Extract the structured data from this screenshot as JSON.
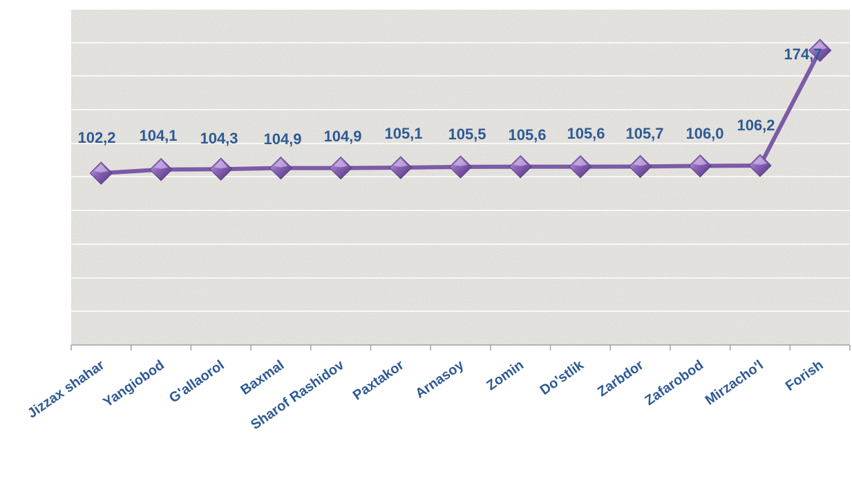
{
  "chart_data": {
    "type": "line",
    "categories": [
      "Jizzax shahar",
      "Yangiobod",
      "G'allaorol",
      "Baxmal",
      "Sharof Rashidov",
      "Paxtakor",
      "Arnasoy",
      "Zomin",
      "Do'stlik",
      "Zarbdor",
      "Zafarobod",
      "Mirzacho'l",
      "Forish"
    ],
    "values": [
      102.2,
      104.1,
      104.3,
      104.9,
      104.9,
      105.1,
      105.5,
      105.6,
      105.6,
      105.7,
      106.0,
      106.2,
      174.7
    ],
    "data_labels": [
      "102,2",
      "104,1",
      "104,3",
      "104,9",
      "104,9",
      "105,1",
      "105,5",
      "105,6",
      "105,6",
      "105,7",
      "106,0",
      "106,2",
      "174,7"
    ],
    "marker": "diamond",
    "grid": true,
    "legend": "none",
    "y_axis_visible": false,
    "colors": {
      "line": "#7B5BA6",
      "marker": "#8A63B8",
      "marker_dark": "#5A3E86",
      "label": "#2E5A94",
      "gridline": "#FFFFFF",
      "plot_bg": "#E6E4E0",
      "axis": "#A0A0A0"
    }
  }
}
